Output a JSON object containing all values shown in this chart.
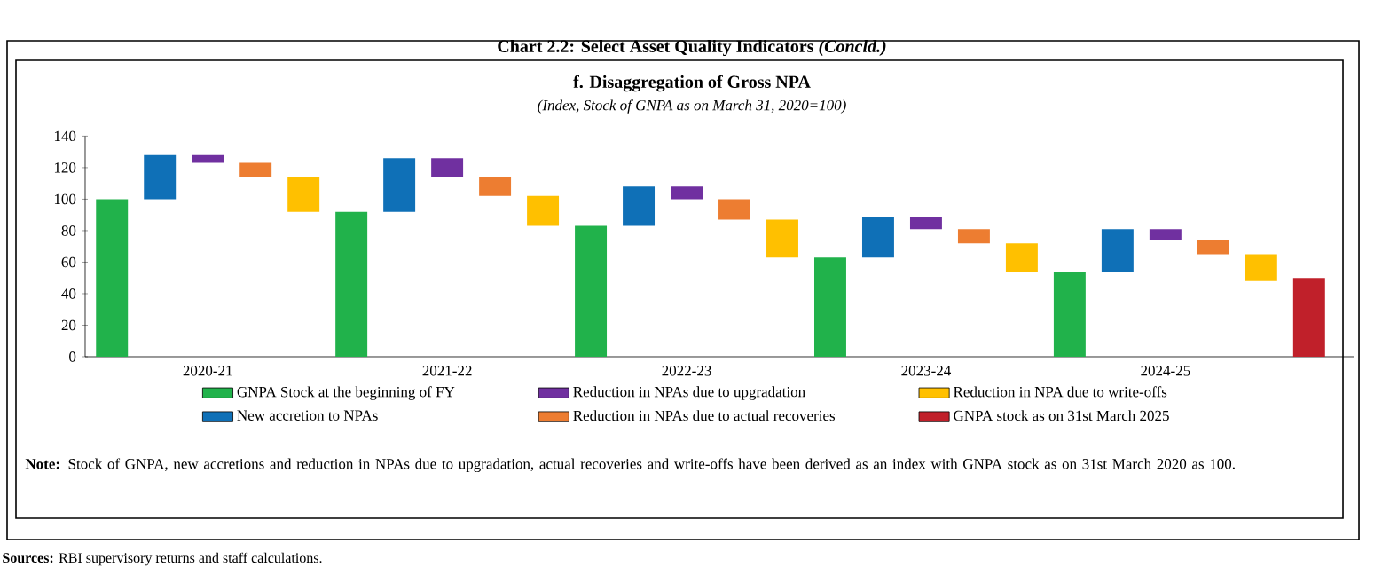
{
  "chart_data": {
    "type": "bar",
    "title": "f. Disaggregation of Gross NPA",
    "subtitle": "(Index, Stock of GNPA as on March 31, 2020=100)",
    "categories": [
      null,
      null,
      "2020-21",
      null,
      null,
      null,
      null,
      "2021-22",
      null,
      null,
      null,
      null,
      "2022-23",
      null,
      null,
      null,
      null,
      "2023-24",
      null,
      null,
      null,
      null,
      "2024-25",
      null,
      null,
      null
    ],
    "series": [
      {
        "name": "GNPA Stock at the beginning of FY",
        "color": "#21b24b",
        "values": [
          100,
          null,
          null,
          null,
          null,
          92,
          null,
          null,
          null,
          null,
          83,
          null,
          null,
          null,
          null,
          63,
          null,
          null,
          null,
          null,
          54,
          null,
          null,
          null,
          null,
          null
        ],
        "base": [
          0,
          null,
          null,
          null,
          null,
          0,
          null,
          null,
          null,
          null,
          0,
          null,
          null,
          null,
          null,
          0,
          null,
          null,
          null,
          null,
          0,
          null,
          null,
          null,
          null,
          null
        ]
      },
      {
        "name": "New accretion to NPAs",
        "color": "#0f70b7",
        "values": [
          null,
          28,
          null,
          null,
          null,
          null,
          34,
          null,
          null,
          null,
          null,
          25,
          null,
          null,
          null,
          null,
          26,
          null,
          null,
          null,
          null,
          27,
          null,
          null,
          null,
          null
        ],
        "base": [
          null,
          100,
          null,
          null,
          null,
          null,
          92,
          null,
          null,
          null,
          null,
          83,
          null,
          null,
          null,
          null,
          63,
          null,
          null,
          null,
          null,
          54,
          null,
          null,
          null,
          null
        ]
      },
      {
        "name": "Reduction in NPAs due to upgradation",
        "color": "#7030a0",
        "values": [
          null,
          null,
          -5,
          null,
          null,
          null,
          null,
          -12,
          null,
          null,
          null,
          null,
          -8,
          null,
          null,
          null,
          null,
          -8,
          null,
          null,
          null,
          null,
          -7,
          null,
          null,
          null
        ],
        "base": [
          null,
          null,
          128,
          null,
          null,
          null,
          null,
          126,
          null,
          null,
          null,
          null,
          108,
          null,
          null,
          null,
          null,
          89,
          null,
          null,
          null,
          null,
          81,
          null,
          null,
          null
        ]
      },
      {
        "name": "Reduction in NPAs due to actual recoveries",
        "color": "#ed7d31",
        "values": [
          null,
          null,
          null,
          -9,
          null,
          null,
          null,
          null,
          -12,
          null,
          null,
          null,
          null,
          -13,
          null,
          null,
          null,
          null,
          -9,
          null,
          null,
          null,
          null,
          -9,
          null,
          null
        ],
        "base": [
          null,
          null,
          null,
          123,
          null,
          null,
          null,
          null,
          114,
          null,
          null,
          null,
          null,
          100,
          null,
          null,
          null,
          null,
          81,
          null,
          null,
          null,
          null,
          74,
          null,
          null
        ]
      },
      {
        "name": "Reduction in NPA due to write-offs",
        "color": "#ffc000",
        "values": [
          null,
          null,
          null,
          null,
          -22,
          null,
          null,
          null,
          null,
          -19,
          null,
          null,
          null,
          null,
          -24,
          null,
          null,
          null,
          null,
          -18,
          null,
          null,
          null,
          null,
          -17,
          null
        ],
        "base": [
          null,
          null,
          null,
          null,
          114,
          null,
          null,
          null,
          null,
          102,
          null,
          null,
          null,
          null,
          87,
          null,
          null,
          null,
          null,
          72,
          null,
          null,
          null,
          null,
          65,
          null
        ]
      },
      {
        "name": "GNPA stock as on 31st March 2025",
        "color": "#c0202a",
        "values": [
          null,
          null,
          null,
          null,
          null,
          null,
          null,
          null,
          null,
          null,
          null,
          null,
          null,
          null,
          null,
          null,
          null,
          null,
          null,
          null,
          null,
          null,
          null,
          null,
          null,
          50
        ],
        "base": [
          null,
          null,
          null,
          null,
          null,
          null,
          null,
          null,
          null,
          null,
          null,
          null,
          null,
          null,
          null,
          null,
          null,
          null,
          null,
          null,
          null,
          null,
          null,
          null,
          null,
          0
        ]
      }
    ],
    "ylim": [
      0,
      140
    ],
    "yticks": [
      0,
      20,
      40,
      60,
      80,
      100,
      120,
      140
    ],
    "legend": "bottom",
    "annotations": [
      "Chart 2.2: Select Asset Quality Indicators *(Concld.)*",
      "**Note:** Stock of GNPA, new accretions and reduction in NPAs due to upgradation, actual recoveries and write-offs have been derived as an index with GNPA stock as on 31st March 2020 as 100.",
      "**Sources:** RBI supervisory returns and staff calculations."
    ]
  }
}
